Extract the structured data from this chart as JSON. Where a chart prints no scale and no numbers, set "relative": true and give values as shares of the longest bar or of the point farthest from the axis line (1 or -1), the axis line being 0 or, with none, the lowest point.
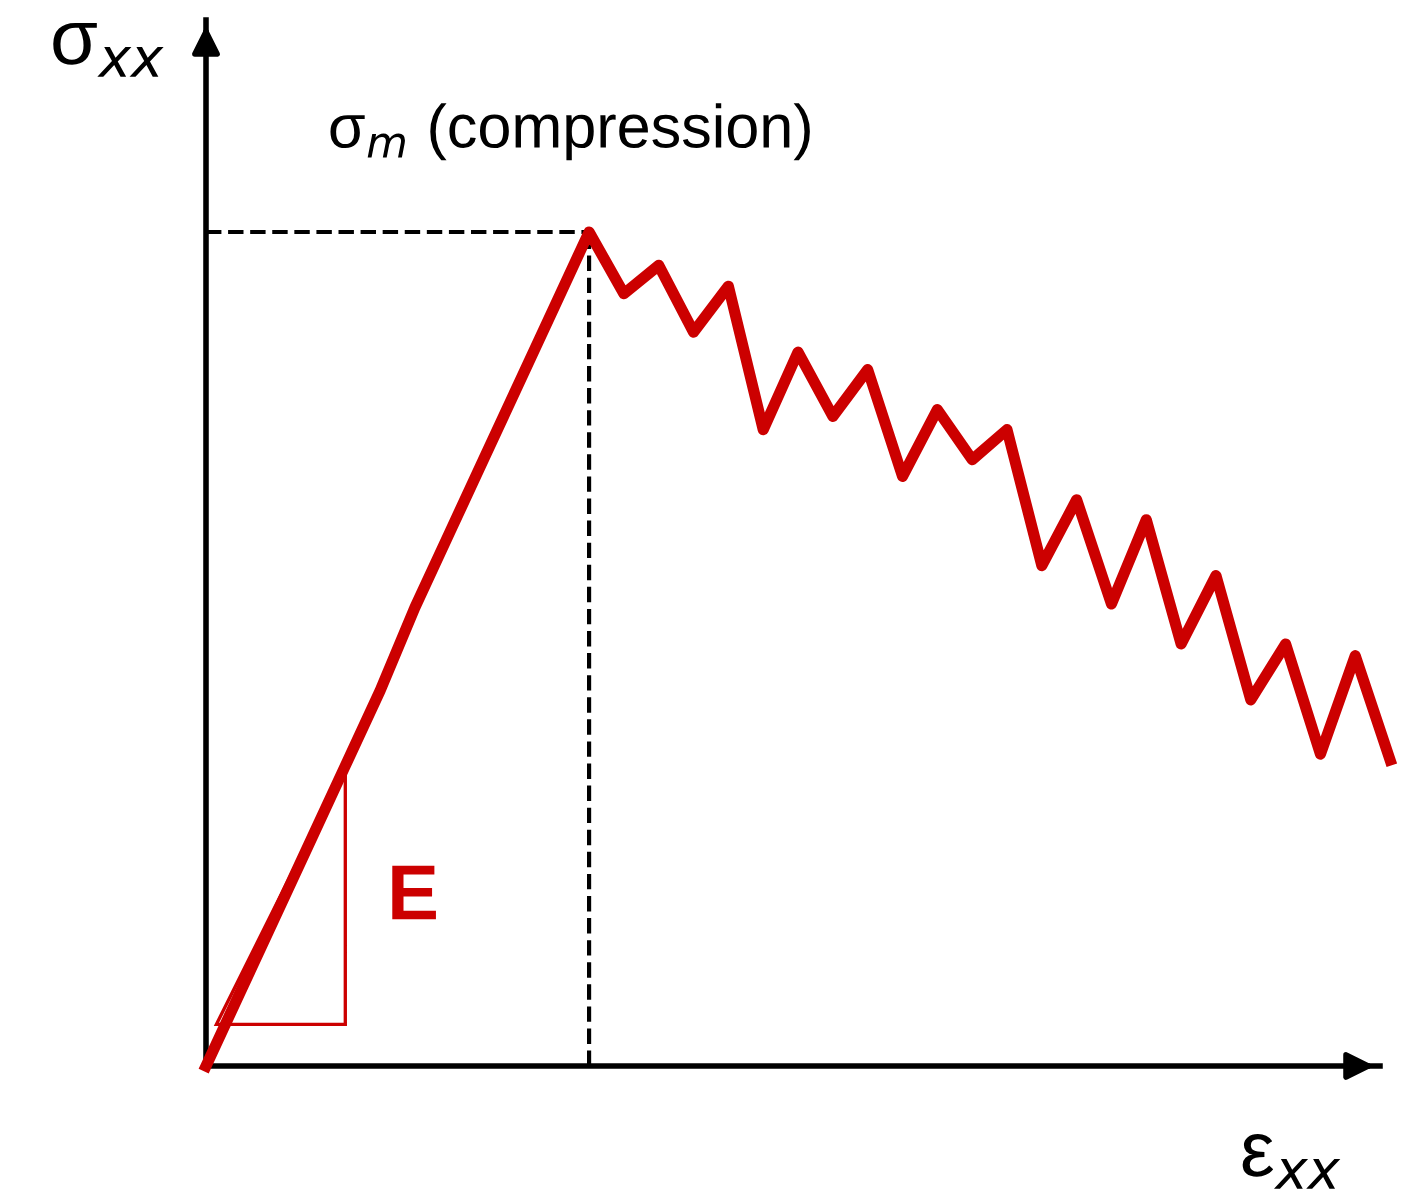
{
  "chart_data": {
    "type": "line",
    "relative": true,
    "xlabel": "ε$_{xx}$",
    "ylabel": "σ$_{xx}$",
    "categories": [
      null,
      null,
      null,
      null,
      null,
      null,
      null,
      null,
      null,
      null,
      null,
      null,
      null,
      null,
      null,
      null,
      null,
      null,
      null,
      null,
      null,
      null,
      null,
      null,
      null,
      null,
      null,
      null,
      null,
      null,
      null,
      null,
      null,
      null,
      null
    ],
    "series": [
      {
        "color": "#cc0000",
        "values": [
          0,
          0.09,
          0.18,
          0.27,
          0.36,
          0.45,
          0.55,
          0.64,
          0.73,
          0.82,
          0.91,
          1.0,
          0.926,
          0.96,
          0.88,
          0.935,
          0.763,
          0.856,
          0.779,
          0.835,
          0.707,
          0.787,
          0.727,
          0.763,
          0.6,
          0.679,
          0.554,
          0.655,
          0.506,
          0.588,
          0.439,
          0.506,
          0.374,
          0.492,
          0.367
        ]
      }
    ],
    "ref_lines": [
      {
        "axis": "y",
        "value": 1.0,
        "color": "#000000",
        "line_style": "dashed"
      }
    ],
    "annotations": [
      {
        "text": "σ$_{m}$ (compression)",
        "y": 1.0
      },
      "E"
    ],
    "marker": "none",
    "line_style": "solid"
  }
}
